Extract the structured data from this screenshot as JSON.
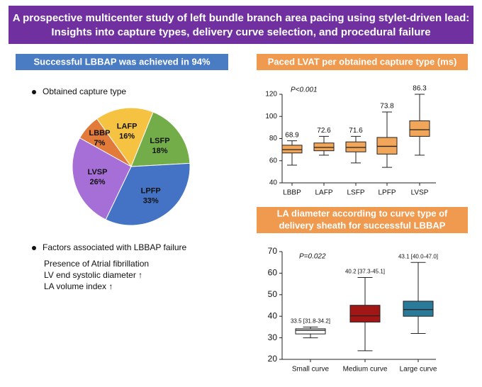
{
  "header": {
    "title": [
      "A prospective multicenter study of left bundle branch area pacing using stylet-driven lead:",
      "Insights into capture types, delivery curve selection, and procedural failure"
    ]
  },
  "failure": {
    "heading": "Factors associated with LBBAP failure",
    "factors": [
      "Presence of Atrial fibrillation",
      "LV end systolic diameter ↑",
      "LA volume index ↑"
    ]
  },
  "chart_data": [
    {
      "type": "pie",
      "title": "Successful LBBAP was achieved in 94%",
      "subtitle": "Obtained capture type",
      "categories": [
        "LAFP",
        "LSFP",
        "LPFP",
        "LVSP",
        "LBBP"
      ],
      "values": [
        16,
        18,
        33,
        26,
        7
      ],
      "value_labels": [
        "16%",
        "18%",
        "33%",
        "26%",
        "7%"
      ],
      "colors": [
        "#f5c242",
        "#72ad4a",
        "#4472c4",
        "#a66fd8",
        "#e27a3a"
      ]
    },
    {
      "type": "box",
      "title": "Paced LVAT per obtained capture type (ms)",
      "annotation": "P<0.001",
      "categories": [
        "LBBP",
        "LAFP",
        "LSFP",
        "LPFP",
        "LVSP"
      ],
      "min": [
        56,
        65,
        58,
        54,
        65
      ],
      "q1": [
        67,
        69,
        68,
        66,
        82
      ],
      "median": [
        70,
        72,
        72,
        73,
        88
      ],
      "q3": [
        74,
        76,
        77,
        81,
        96
      ],
      "max": [
        78,
        82,
        82,
        104,
        120
      ],
      "means": [
        68.9,
        72.6,
        71.6,
        73.8,
        86.3
      ],
      "color": "#f2a65a",
      "ylim": [
        40,
        120
      ],
      "yticks": [
        40,
        60,
        80,
        100,
        120
      ]
    },
    {
      "type": "box",
      "title": [
        "LA diameter according to curve type of",
        "delivery sheath for successful LBBAP"
      ],
      "annotation": "P=0.022",
      "categories": [
        "Small curve",
        "Medium curve",
        "Large curve"
      ],
      "min": [
        30,
        24,
        32
      ],
      "q1": [
        31.8,
        37.3,
        40.0
      ],
      "median": [
        33.5,
        40.2,
        43.1
      ],
      "q3": [
        34.2,
        45.1,
        47.0
      ],
      "max": [
        35,
        58,
        65
      ],
      "value_labels": [
        "33.5 [31.8-34.2]",
        "40.2 [37.3-45.1]",
        "43.1 [40.0-47.0]"
      ],
      "colors": [
        "#ffffff",
        "#a31616",
        "#2b7a99"
      ],
      "ylim": [
        20,
        70
      ],
      "yticks": [
        20,
        30,
        40,
        50,
        60,
        70
      ]
    }
  ]
}
